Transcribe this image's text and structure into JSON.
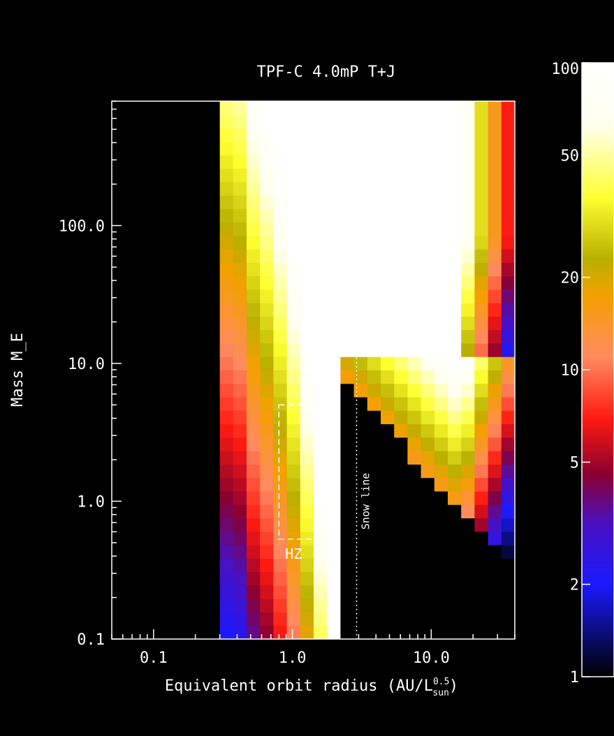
{
  "chart_data": {
    "type": "heatmap",
    "title": "TPF-C 4.0mP T+J",
    "xlabel": "Equivalent orbit radius (AU/L",
    "xlabel_sup": "0.5",
    "xlabel_sub": "sun",
    "xlabel_close": ")",
    "ylabel": "Mass M_E",
    "x_scale": "log",
    "y_scale": "log",
    "xlim": [
      0.05,
      40
    ],
    "ylim": [
      0.1,
      800
    ],
    "x_ticks": [
      {
        "value": 0.1,
        "label": "0.1"
      },
      {
        "value": 1.0,
        "label": "1.0"
      },
      {
        "value": 10.0,
        "label": "10.0"
      }
    ],
    "y_ticks": [
      {
        "value": 0.1,
        "label": "0.1"
      },
      {
        "value": 1.0,
        "label": "1.0"
      },
      {
        "value": 10.0,
        "label": "10.0"
      },
      {
        "value": 100.0,
        "label": "100.0"
      }
    ],
    "colorbar": {
      "scale": "log",
      "range": [
        1,
        100
      ],
      "ticks": [
        {
          "value": 1,
          "label": "1"
        },
        {
          "value": 2,
          "label": "2"
        },
        {
          "value": 5,
          "label": "5"
        },
        {
          "value": 10,
          "label": "10"
        },
        {
          "value": 20,
          "label": "20"
        },
        {
          "value": 50,
          "label": "50"
        },
        {
          "value": 100,
          "label": "100"
        }
      ]
    },
    "grid": {
      "n_cols": 22,
      "n_rows": 40,
      "x_min": 0.3,
      "x_max": 40,
      "y_min": 0.1,
      "y_max": 800,
      "description_of_field": "detection value per (orbit radius, mass) cell; 0 = no data",
      "col_profile": [
        2.0,
        2.2,
        3.5,
        4.5,
        6.5,
        10.0,
        18.0,
        40.0,
        100.0,
        100.0,
        100.0,
        100.0,
        100.0,
        100.0,
        100.0,
        100.0,
        100.0,
        100.0,
        70.0,
        30.0,
        15.0,
        7.0
      ]
    },
    "annotations": [
      {
        "label": "HZ",
        "x_range": [
          0.8,
          1.8
        ],
        "y_range": [
          0.53,
          5.0
        ]
      },
      {
        "label": "Snow line",
        "x": 2.9
      }
    ]
  }
}
